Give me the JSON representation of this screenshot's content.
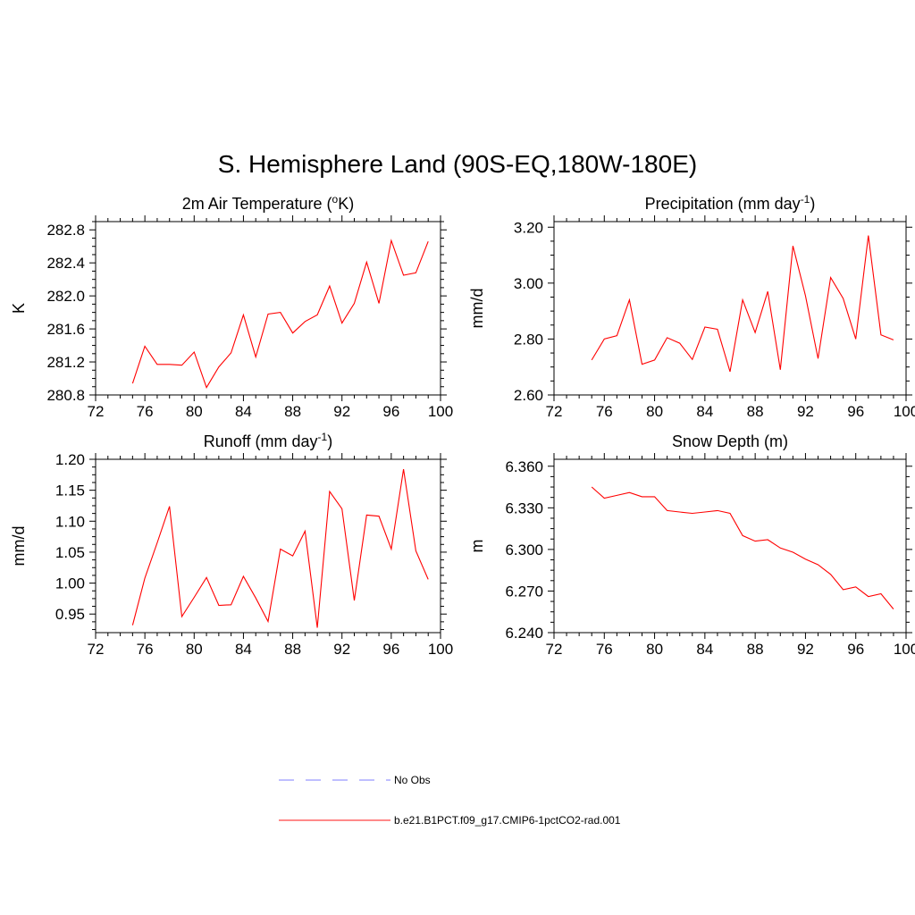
{
  "figure": {
    "title": "S. Hemisphere Land (90S-EQ,180W-180E)"
  },
  "legend": {
    "items": [
      {
        "label": "No Obs",
        "color": "#9999ff",
        "dash": true
      },
      {
        "label": "b.e21.B1PCT.f09_g17.CMIP6-1pctCO2-rad.001",
        "color": "#ff4444",
        "dash": false
      }
    ]
  },
  "chart_data": [
    {
      "type": "line",
      "title": "2m Air Temperature (",
      "title_sup": "o",
      "title_end": "K)",
      "ylabel": "K",
      "xlabel": "",
      "xlim": [
        72,
        100
      ],
      "ylim": [
        280.8,
        282.9
      ],
      "xticks": [
        72,
        76,
        80,
        84,
        88,
        92,
        96,
        100
      ],
      "yticks": [
        280.8,
        281.2,
        281.6,
        282.0,
        282.4,
        282.8
      ],
      "ytick_labels": [
        "280.8",
        "281.2",
        "281.6",
        "282.0",
        "282.4",
        "282.8"
      ],
      "series": [
        {
          "color": "#ff0000",
          "x": [
            75,
            76,
            77,
            78,
            79,
            80,
            81,
            82,
            83,
            84,
            85,
            86,
            87,
            88,
            89,
            90,
            91,
            92,
            93,
            94,
            95,
            96,
            97,
            98,
            99
          ],
          "y": [
            280.94,
            281.39,
            281.17,
            281.17,
            281.16,
            281.32,
            280.89,
            281.14,
            281.31,
            281.77,
            281.26,
            281.78,
            281.8,
            281.55,
            281.69,
            281.77,
            282.12,
            281.67,
            281.91,
            282.41,
            281.91,
            282.67,
            282.25,
            282.28,
            282.66
          ]
        }
      ]
    },
    {
      "type": "line",
      "title": "Precipitation (mm day",
      "title_sup": "-1",
      "title_end": ")",
      "ylabel": "mm/d",
      "xlabel": "",
      "xlim": [
        72,
        100
      ],
      "ylim": [
        2.6,
        3.22
      ],
      "xticks": [
        72,
        76,
        80,
        84,
        88,
        92,
        96,
        100
      ],
      "yticks": [
        2.6,
        2.8,
        3.0,
        3.2
      ],
      "ytick_labels": [
        "2.60",
        "2.80",
        "3.00",
        "3.20"
      ],
      "series": [
        {
          "color": "#ff0000",
          "x": [
            75,
            76,
            77,
            78,
            79,
            80,
            81,
            82,
            83,
            84,
            85,
            86,
            87,
            88,
            89,
            90,
            91,
            92,
            93,
            94,
            95,
            96,
            97,
            98,
            99
          ],
          "y": [
            2.725,
            2.8,
            2.812,
            2.94,
            2.71,
            2.725,
            2.805,
            2.785,
            2.727,
            2.843,
            2.835,
            2.683,
            2.94,
            2.823,
            2.97,
            2.69,
            3.133,
            2.955,
            2.73,
            3.02,
            2.945,
            2.8,
            3.17,
            2.815,
            2.797
          ]
        }
      ]
    },
    {
      "type": "line",
      "title": "Runoff (mm day",
      "title_sup": "-1",
      "title_end": ")",
      "ylabel": "mm/d",
      "xlabel": "",
      "xlim": [
        72,
        100
      ],
      "ylim": [
        0.92,
        1.2
      ],
      "xticks": [
        72,
        76,
        80,
        84,
        88,
        92,
        96,
        100
      ],
      "yticks": [
        0.95,
        1.0,
        1.05,
        1.1,
        1.15,
        1.2
      ],
      "ytick_labels": [
        "0.95",
        "1.00",
        "1.05",
        "1.10",
        "1.15",
        "1.20"
      ],
      "series": [
        {
          "color": "#ff0000",
          "x": [
            75,
            76,
            77,
            78,
            79,
            80,
            81,
            82,
            83,
            84,
            85,
            86,
            87,
            88,
            89,
            90,
            91,
            92,
            93,
            94,
            95,
            96,
            97,
            98,
            99
          ],
          "y": [
            0.932,
            1.008,
            1.065,
            1.124,
            0.946,
            0.977,
            1.009,
            0.964,
            0.965,
            1.011,
            0.976,
            0.938,
            1.055,
            1.044,
            1.084,
            0.928,
            1.148,
            1.12,
            0.972,
            1.11,
            1.108,
            1.055,
            1.184,
            1.052,
            1.006
          ]
        }
      ]
    },
    {
      "type": "line",
      "title": "Snow Depth (m)",
      "title_sup": "",
      "title_end": "",
      "ylabel": "m",
      "xlabel": "",
      "xlim": [
        72,
        100
      ],
      "ylim": [
        6.24,
        6.365
      ],
      "xticks": [
        72,
        76,
        80,
        84,
        88,
        92,
        96,
        100
      ],
      "yticks": [
        6.24,
        6.27,
        6.3,
        6.33,
        6.36
      ],
      "ytick_labels": [
        "6.240",
        "6.270",
        "6.300",
        "6.330",
        "6.360"
      ],
      "series": [
        {
          "color": "#ff0000",
          "x": [
            75,
            76,
            77,
            78,
            79,
            80,
            81,
            82,
            83,
            84,
            85,
            86,
            87,
            88,
            89,
            90,
            91,
            92,
            93,
            94,
            95,
            96,
            97,
            98,
            99
          ],
          "y": [
            6.345,
            6.337,
            6.339,
            6.341,
            6.338,
            6.338,
            6.328,
            6.327,
            6.326,
            6.327,
            6.328,
            6.326,
            6.31,
            6.306,
            6.307,
            6.301,
            6.298,
            6.293,
            6.289,
            6.282,
            6.271,
            6.273,
            6.266,
            6.268,
            6.257
          ]
        }
      ]
    }
  ]
}
